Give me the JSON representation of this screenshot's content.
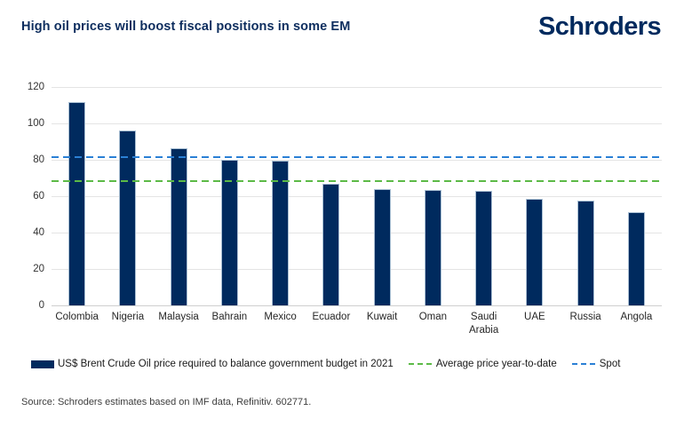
{
  "header": {
    "title": "High oil prices will boost fiscal positions in some EM",
    "logo_text": "Schroders"
  },
  "chart_data": {
    "type": "bar",
    "title": "High oil prices will boost fiscal positions in some EM",
    "categories": [
      "Colombia",
      "Nigeria",
      "Malaysia",
      "Bahrain",
      "Mexico",
      "Ecuador",
      "Kuwait",
      "Oman",
      "Saudi Arabia",
      "UAE",
      "Russia",
      "Angola"
    ],
    "series": [
      {
        "name": "US$ Brent Crude Oil price required to balance government budget in 2021",
        "values": [
          111.5,
          96,
          86.5,
          80,
          79.5,
          67,
          64,
          63.5,
          63,
          58.5,
          57.5,
          51
        ]
      }
    ],
    "reference_lines": [
      {
        "name": "Average price year-to-date",
        "value": 68.3,
        "color": "#5cba47",
        "style": "dashed"
      },
      {
        "name": "Spot",
        "value": 81.4,
        "color": "#2b80d5",
        "style": "dashed"
      }
    ],
    "xlabel": "",
    "ylabel": "",
    "ylim": [
      0,
      120
    ],
    "yticks": [
      0,
      20,
      40,
      60,
      80,
      100,
      120
    ],
    "grid": true,
    "legend_position": "bottom",
    "bar_color": "#002a5e"
  },
  "legend": {
    "bar_label": "US$ Brent Crude Oil price required to balance government budget in 2021",
    "avg_label": "Average price year-to-date",
    "spot_label": "Spot"
  },
  "footer": {
    "source": "Source: Schroders estimates based on IMF data, Refinitiv. 602771."
  },
  "colors": {
    "navy": "#002a5e",
    "spot_blue": "#2b80d5",
    "avg_green": "#5cba47",
    "gridline": "#e4e4e4"
  }
}
